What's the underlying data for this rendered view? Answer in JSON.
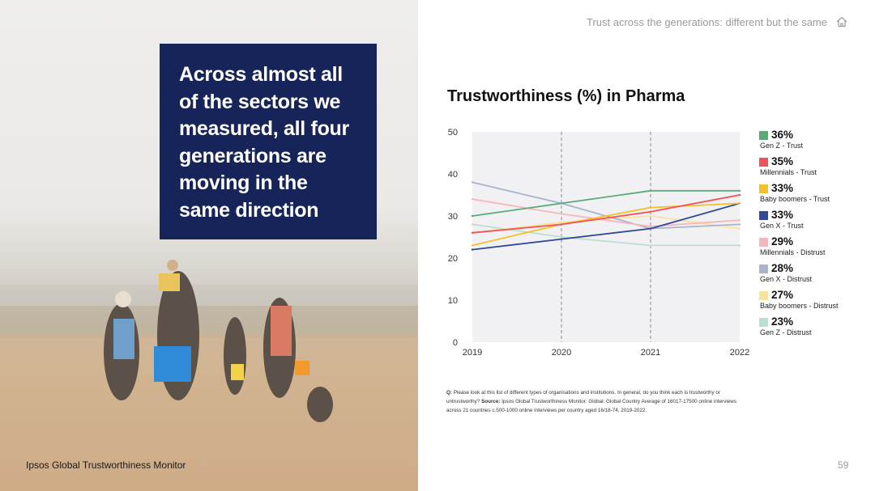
{
  "header": {
    "title": "Trust across the generations: different but the same",
    "home_icon": "home-icon"
  },
  "quote": {
    "text": "Across almost all of the sectors we measured, all four generations are moving in the same direction"
  },
  "footer": {
    "left": "Ipsos Global Trustworthiness Monitor",
    "page_number": "59"
  },
  "source": {
    "q_label": "Q:",
    "q_text": " Please look at this list of different types of organisations and institutions. In general, do you think each is trustworthy or untrustworthy? ",
    "source_label": "Source:",
    "source_text": " Ipsos Global Trustworthiness Monitor: Global: Global Country Average of 16017-17500 online interviews across 21 countries c.500-1000 online interviews per country aged 16/18-74, 2019-2022."
  },
  "chart_data": {
    "type": "line",
    "title": "Trustworthiness (%) in Pharma",
    "x": [
      "2019",
      "2020",
      "2021",
      "2022"
    ],
    "ylim": [
      0,
      50
    ],
    "yticks": [
      0,
      10,
      20,
      30,
      40,
      50
    ],
    "grid": false,
    "dashed_verticals_at": [
      "2020",
      "2021"
    ],
    "legend_position": "right",
    "series": [
      {
        "name": "Gen Z - Trust",
        "label": "36%",
        "color": "#5aaa78",
        "values": [
          30,
          33,
          36,
          36
        ]
      },
      {
        "name": "Millennials - Trust",
        "label": "35%",
        "color": "#f0525a",
        "values": [
          26,
          28,
          31,
          35
        ]
      },
      {
        "name": "Baby boomers - Trust",
        "label": "33%",
        "color": "#f5bf2a",
        "values": [
          23,
          28,
          32,
          33
        ]
      },
      {
        "name": "Gen X - Trust",
        "label": "33%",
        "color": "#2f4a98",
        "values": [
          22,
          24.5,
          27,
          33
        ]
      },
      {
        "name": "Millennials - Distrust",
        "label": "29%",
        "color": "#f5b7bd",
        "values": [
          34,
          30.5,
          27.5,
          29
        ]
      },
      {
        "name": "Gen X - Distrust",
        "label": "28%",
        "color": "#a9b4ca",
        "values": [
          38,
          33,
          27,
          28
        ]
      },
      {
        "name": "Baby boomers - Distrust",
        "label": "27%",
        "color": "#fae39a",
        "values": [
          26,
          28.5,
          30,
          27
        ]
      },
      {
        "name": "Gen Z - Distrust",
        "label": "23%",
        "color": "#bcded0",
        "values": [
          28,
          25,
          23,
          23
        ]
      }
    ]
  }
}
